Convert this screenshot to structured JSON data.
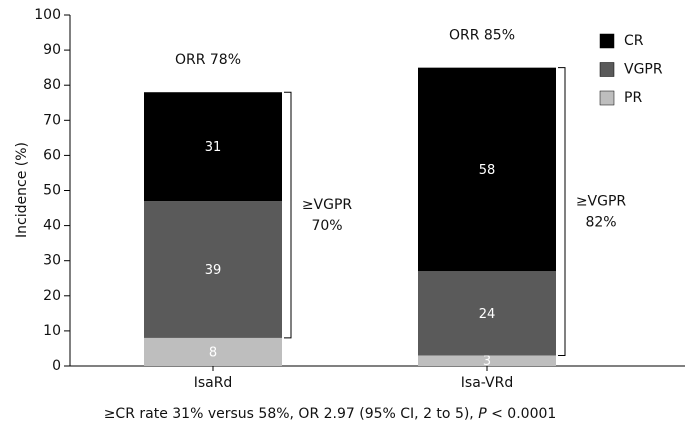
{
  "chart_data": {
    "type": "stacked_bar",
    "categories": [
      "IsaRd",
      "Isa-VRd"
    ],
    "series": [
      {
        "name": "PR",
        "color": "#bebebe",
        "values": [
          8,
          3
        ]
      },
      {
        "name": "VGPR",
        "color": "#5a5a5a",
        "values": [
          39,
          24
        ]
      },
      {
        "name": "CR",
        "color": "#000000",
        "values": [
          31,
          58
        ]
      }
    ],
    "ylabel": "Incidence (%)",
    "ylim": [
      0,
      100
    ],
    "yticks": [
      0,
      10,
      20,
      30,
      40,
      50,
      60,
      70,
      80,
      90,
      100
    ],
    "orr_labels": [
      "ORR 78%",
      "ORR 85%"
    ],
    "vgpr_labels": [
      [
        "≥VGPR",
        "70%"
      ],
      [
        "≥VGPR",
        "82%"
      ]
    ],
    "footnote": [
      "≥CR rate 31% versus 58%, OR 2.97 (95% CI, 2 to 5), ",
      "P",
      " < 0.0001"
    ]
  }
}
